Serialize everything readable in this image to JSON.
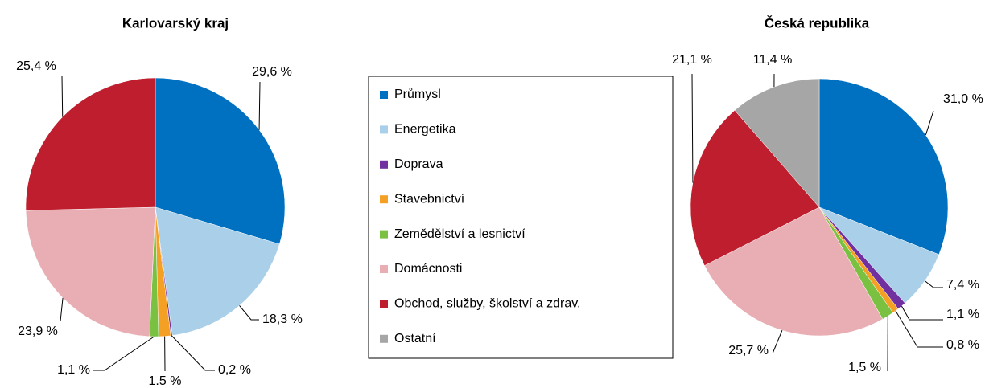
{
  "chart_data": [
    {
      "type": "pie",
      "title": "Karlovarský kraj",
      "values": [
        29.6,
        18.3,
        0.2,
        1.5,
        1.1,
        23.9,
        25.4
      ],
      "value_labels": [
        "29,6 %",
        "18,3 %",
        "0,2 %",
        "1.5 %",
        "1,1 %",
        "23,9 %",
        "25,4 %"
      ],
      "colors": [
        "#0070c0",
        "#a9cfe9",
        "#7030a0",
        "#f4a024",
        "#7ac142",
        "#e8aeb4",
        "#be1e2d"
      ]
    },
    {
      "type": "pie",
      "title": "Česká republika",
      "values": [
        31.0,
        7.4,
        1.1,
        0.8,
        1.5,
        25.7,
        21.1,
        11.4
      ],
      "value_labels": [
        "31,0 %",
        "7,4 %",
        "1,1 %",
        "0,8 %",
        "1,5 %",
        "25,7 %",
        "21,1 %",
        "11,4 %"
      ],
      "colors": [
        "#0070c0",
        "#a9cfe9",
        "#7030a0",
        "#f4a024",
        "#7ac142",
        "#e8aeb4",
        "#be1e2d",
        "#a6a6a6"
      ]
    }
  ],
  "legend": {
    "items": [
      "Průmysl",
      "Energetika",
      "Doprava",
      "Stavebnictví",
      "Zemědělství a lesnictví",
      "Domácnosti",
      "Obchod, služby, školství a zdrav.",
      "Ostatní"
    ],
    "colors": [
      "#0070c0",
      "#a9cfe9",
      "#7030a0",
      "#f4a024",
      "#7ac142",
      "#e8aeb4",
      "#be1e2d",
      "#a6a6a6"
    ]
  }
}
